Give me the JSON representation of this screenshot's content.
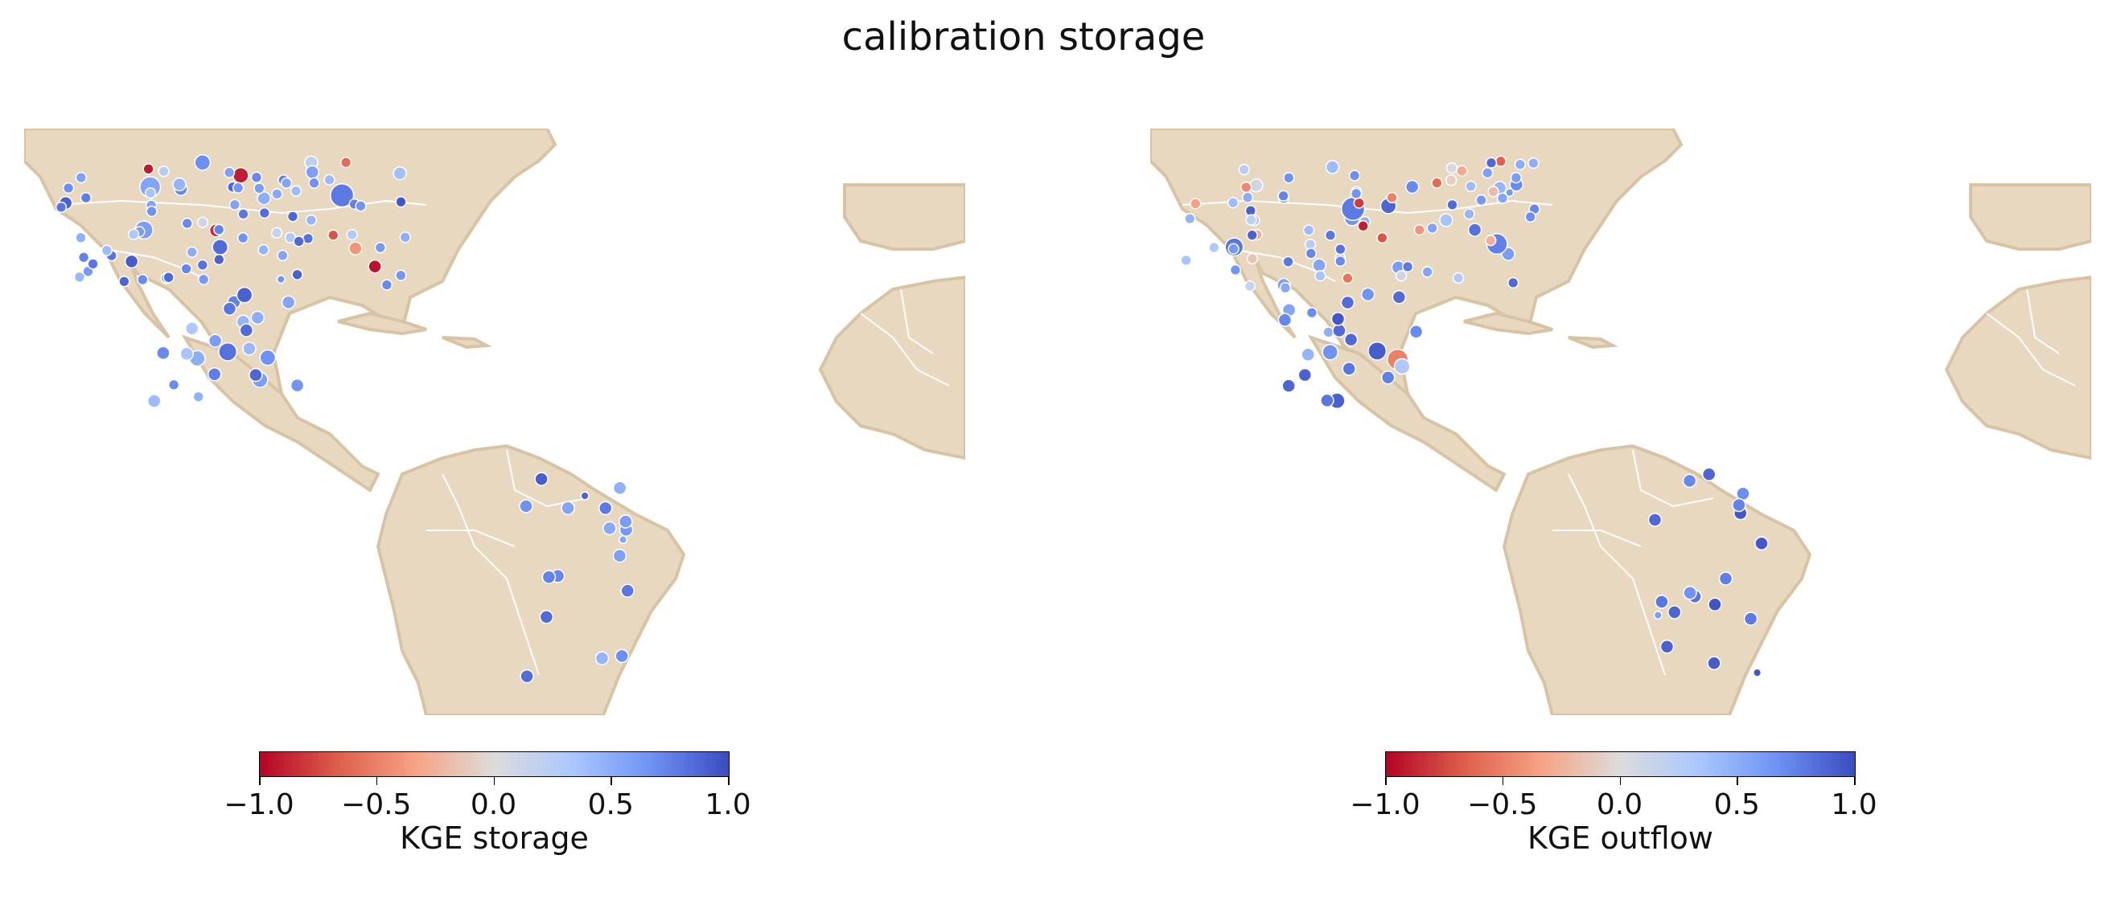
{
  "figure": {
    "title": "calibration storage"
  },
  "colors": {
    "land": "#e8d8c0",
    "coast": "#d8c4a4",
    "border": "#ffffff",
    "cmap": [
      "#b40426",
      "#dd5f4b",
      "#f6a385",
      "#dddcdc",
      "#aac7fd",
      "#6f92f3",
      "#3b4cc0"
    ]
  },
  "colorbar": {
    "ticks": [
      "−1.0",
      "−0.5",
      "0.0",
      "0.5",
      "1.0"
    ]
  },
  "panels": [
    {
      "id": "left",
      "colorbar_label": "KGE storage",
      "points": [
        [
          0.68,
          0.3,
          6
        ],
        [
          0.72,
          0.45,
          5
        ],
        [
          0.55,
          0.55,
          8
        ],
        [
          0.2,
          0.6,
          5
        ],
        [
          0.9,
          0.5,
          5
        ],
        [
          0.4,
          0.7,
          4
        ],
        [
          0.85,
          0.75,
          6
        ],
        [
          0.6,
          0.8,
          7
        ],
        [
          0.1,
          0.4,
          4
        ],
        [
          0.95,
          0.65,
          4
        ],
        [
          0.45,
          0.2,
          5
        ],
        [
          0.78,
          0.85,
          9
        ],
        [
          0.5,
          0.35,
          5
        ],
        [
          0.3,
          0.9,
          4
        ],
        [
          0.88,
          0.6,
          4
        ],
        [
          0.65,
          0.45,
          3
        ],
        [
          -0.9,
          0.7,
          6
        ],
        [
          -0.95,
          0.9,
          5
        ],
        [
          -0.85,
          0.8,
          5
        ],
        [
          -0.92,
          0.6,
          4
        ],
        [
          0.35,
          0.25,
          4
        ],
        [
          0.7,
          0.55,
          4
        ],
        [
          0.92,
          0.35,
          5
        ],
        [
          0.15,
          0.95,
          4
        ],
        [
          0.58,
          0.75,
          5
        ],
        [
          0.82,
          0.4,
          4
        ],
        [
          0.25,
          0.6,
          4
        ],
        [
          -0.4,
          0.7,
          5
        ],
        [
          0.62,
          0.3,
          4
        ],
        [
          0.75,
          0.65,
          4
        ],
        [
          0.48,
          0.5,
          4
        ],
        [
          0.9,
          0.3,
          4
        ],
        [
          0.38,
          0.55,
          5
        ],
        [
          0.66,
          0.7,
          4
        ],
        [
          -0.6,
          0.55,
          4
        ],
        [
          0.52,
          0.45,
          4
        ],
        [
          0.8,
          0.65,
          4
        ],
        [
          0.28,
          0.3,
          4
        ],
        [
          0.7,
          0.35,
          4
        ],
        [
          0.86,
          0.5,
          4
        ],
        [
          0.42,
          0.6,
          4
        ],
        [
          0.6,
          0.5,
          4
        ],
        [
          0.55,
          0.4,
          4
        ],
        [
          0.75,
          0.45,
          4
        ],
        [
          0.65,
          0.55,
          4
        ],
        [
          0.5,
          0.4,
          4
        ],
        [
          0.85,
          0.35,
          4
        ],
        [
          0.4,
          0.5,
          4
        ],
        [
          0.3,
          0.4,
          4
        ],
        [
          0.72,
          0.6,
          4
        ],
        [
          0.62,
          0.45,
          4
        ],
        [
          0.58,
          0.35,
          4
        ],
        [
          -0.7,
          0.6,
          4
        ],
        [
          0.8,
          0.4,
          4
        ],
        [
          0.66,
          0.4,
          4
        ],
        [
          0.74,
          0.5,
          4
        ],
        [
          0.56,
          0.6,
          4
        ],
        [
          0.88,
          0.45,
          4
        ],
        [
          0.46,
          0.35,
          4
        ],
        [
          0.64,
          0.5,
          4
        ],
        [
          0.7,
          0.4,
          4
        ],
        [
          0.54,
          0.45,
          4
        ],
        [
          0.76,
          0.55,
          4
        ],
        [
          0.84,
          0.3,
          4
        ],
        [
          0.6,
          0.35,
          4
        ],
        [
          0.52,
          0.55,
          4
        ],
        [
          0.68,
          0.45,
          4
        ],
        [
          0.44,
          0.4,
          4
        ],
        [
          0.78,
          0.5,
          4
        ],
        [
          0.62,
          0.4,
          4
        ],
        [
          0.82,
          0.35,
          4
        ],
        [
          0.58,
          0.45,
          4
        ],
        [
          0.72,
          0.4,
          4
        ],
        [
          0.5,
          0.5,
          4
        ],
        [
          0.66,
          0.35,
          4
        ],
        [
          0.86,
          0.4,
          4
        ],
        [
          0.4,
          0.35,
          4
        ],
        [
          0.74,
          0.35,
          4
        ],
        [
          0.56,
          0.4,
          4
        ],
        [
          0.8,
          0.45,
          4
        ],
        [
          0.64,
          0.45,
          4
        ],
        [
          0.9,
          0.4,
          4
        ],
        [
          0.48,
          0.3,
          4
        ],
        [
          0.7,
          0.3,
          4
        ],
        [
          0.82,
          0.6,
          7
        ],
        [
          0.6,
          0.85,
          6
        ],
        [
          0.5,
          0.7,
          6
        ],
        [
          0.4,
          0.8,
          5
        ],
        [
          0.88,
          0.7,
          5
        ],
        [
          0.66,
          0.75,
          6
        ],
        [
          0.3,
          0.65,
          5
        ],
        [
          0.75,
          0.8,
          5
        ],
        [
          0.55,
          0.9,
          5
        ],
        [
          0.9,
          0.85,
          6
        ],
        [
          0.45,
          0.75,
          5
        ],
        [
          0.7,
          0.7,
          5
        ],
        [
          0.6,
          0.65,
          5
        ],
        [
          0.35,
          0.85,
          5
        ],
        [
          0.8,
          0.9,
          5
        ],
        [
          0.65,
          0.6,
          5
        ],
        [
          0.5,
          0.8,
          5
        ],
        [
          0.85,
          0.65,
          5
        ],
        [
          0.42,
          0.72,
          5
        ],
        [
          0.76,
          0.76,
          5
        ],
        [
          0.58,
          0.68,
          5
        ],
        [
          0.68,
          0.82,
          5
        ],
        [
          0.52,
          0.62,
          5
        ],
        [
          0.86,
          0.78,
          5
        ],
        [
          0.78,
          0.7,
          5
        ],
        [
          0.62,
          0.72,
          5
        ],
        [
          0.72,
          0.78,
          5
        ],
        [
          0.46,
          0.66,
          5
        ],
        [
          0.92,
          0.72,
          5
        ],
        [
          0.56,
          0.76,
          5
        ],
        [
          0.66,
          0.66,
          5
        ],
        [
          0.84,
          0.82,
          5
        ],
        [
          0.48,
          0.86,
          5
        ],
        [
          0.74,
          0.68,
          5
        ],
        [
          0.6,
          0.78,
          5
        ],
        [
          0.8,
          0.74,
          5
        ],
        [
          0.9,
          0.45,
          3
        ],
        [
          0.55,
          0.35,
          3
        ]
      ]
    },
    {
      "id": "right",
      "colorbar_label": "KGE outflow",
      "points": [
        [
          0.55,
          0.3,
          4
        ],
        [
          0.6,
          0.45,
          5
        ],
        [
          0.75,
          0.55,
          8
        ],
        [
          0.4,
          0.6,
          5
        ],
        [
          0.7,
          0.5,
          5
        ],
        [
          0.85,
          0.7,
          4
        ],
        [
          0.65,
          0.75,
          6
        ],
        [
          0.8,
          0.8,
          7
        ],
        [
          0.5,
          0.4,
          4
        ],
        [
          0.9,
          0.65,
          4
        ],
        [
          0.35,
          0.2,
          5
        ],
        [
          0.78,
          0.85,
          9
        ],
        [
          0.45,
          0.35,
          5
        ],
        [
          0.3,
          0.9,
          4
        ],
        [
          0.72,
          0.6,
          4
        ],
        [
          0.62,
          0.45,
          3
        ],
        [
          0.88,
          0.7,
          6
        ],
        [
          0.55,
          0.9,
          5
        ],
        [
          0.6,
          0.8,
          5
        ],
        [
          0.68,
          0.6,
          4
        ],
        [
          0.5,
          0.25,
          4
        ],
        [
          0.75,
          0.55,
          4
        ],
        [
          0.82,
          0.35,
          5
        ],
        [
          0.4,
          0.95,
          4
        ],
        [
          0.58,
          0.75,
          5
        ],
        [
          0.86,
          0.4,
          4
        ],
        [
          0.25,
          0.6,
          4
        ],
        [
          0.7,
          0.7,
          5
        ],
        [
          0.62,
          0.3,
          4
        ],
        [
          0.8,
          0.65,
          4
        ],
        [
          -0.5,
          0.5,
          4
        ],
        [
          -0.3,
          0.3,
          4
        ],
        [
          0.1,
          0.55,
          5
        ],
        [
          -0.7,
          0.7,
          4
        ],
        [
          0.3,
          0.55,
          4
        ],
        [
          -0.2,
          0.45,
          4
        ],
        [
          0.2,
          0.65,
          4
        ],
        [
          -0.6,
          0.3,
          4
        ],
        [
          0.05,
          0.35,
          4
        ],
        [
          0.4,
          0.5,
          4
        ],
        [
          -0.4,
          0.6,
          4
        ],
        [
          0.15,
          0.5,
          4
        ],
        [
          -0.1,
          0.4,
          4
        ],
        [
          0.35,
          0.45,
          4
        ],
        [
          -0.8,
          0.55,
          4
        ],
        [
          0.25,
          0.4,
          4
        ],
        [
          -0.3,
          0.35,
          4
        ],
        [
          0.45,
          0.5,
          4
        ],
        [
          0.5,
          0.4,
          4
        ],
        [
          -0.55,
          0.6,
          4
        ],
        [
          0.3,
          0.45,
          4
        ],
        [
          -0.25,
          0.35,
          4
        ],
        [
          0.6,
          0.6,
          4
        ],
        [
          -0.35,
          0.4,
          4
        ],
        [
          0.2,
          0.4,
          4
        ],
        [
          0.1,
          0.5,
          4
        ],
        [
          -0.15,
          0.6,
          4
        ],
        [
          0.35,
          0.45,
          4
        ],
        [
          -0.45,
          0.35,
          4
        ],
        [
          0.55,
          0.5,
          4
        ],
        [
          -0.65,
          0.4,
          4
        ],
        [
          -0.9,
          0.45,
          4
        ],
        [
          0.65,
          0.55,
          4
        ],
        [
          0.7,
          0.3,
          4
        ],
        [
          0.6,
          0.35,
          4
        ],
        [
          0.52,
          0.55,
          4
        ],
        [
          0.68,
          0.45,
          4
        ],
        [
          0.44,
          0.4,
          4
        ],
        [
          0.78,
          0.5,
          4
        ],
        [
          0.62,
          0.4,
          4
        ],
        [
          0.82,
          0.35,
          4
        ],
        [
          0.58,
          0.45,
          4
        ],
        [
          0.72,
          0.4,
          4
        ],
        [
          0.5,
          0.5,
          4
        ],
        [
          0.66,
          0.35,
          4
        ],
        [
          0.86,
          0.4,
          4
        ],
        [
          0.4,
          0.35,
          4
        ],
        [
          0.74,
          0.35,
          4
        ],
        [
          0.56,
          0.4,
          4
        ],
        [
          0.8,
          0.45,
          4
        ],
        [
          0.64,
          0.45,
          4
        ],
        [
          0.9,
          0.4,
          4
        ],
        [
          0.48,
          0.3,
          4
        ],
        [
          0.7,
          0.3,
          4
        ],
        [
          0.92,
          0.6,
          7
        ],
        [
          -0.5,
          0.85,
          8
        ],
        [
          0.3,
          0.7,
          6
        ],
        [
          0.8,
          0.8,
          5
        ],
        [
          0.88,
          0.7,
          5
        ],
        [
          0.66,
          0.75,
          6
        ],
        [
          0.7,
          0.65,
          5
        ],
        [
          0.85,
          0.8,
          5
        ],
        [
          0.55,
          0.9,
          5
        ],
        [
          0.9,
          0.85,
          6
        ],
        [
          0.45,
          0.75,
          5
        ],
        [
          0.8,
          0.7,
          5
        ],
        [
          0.9,
          0.65,
          5
        ],
        [
          0.75,
          0.85,
          5
        ],
        [
          0.85,
          0.9,
          5
        ],
        [
          0.65,
          0.6,
          5
        ],
        [
          0.95,
          0.8,
          5
        ],
        [
          0.85,
          0.65,
          5
        ],
        [
          0.72,
          0.72,
          5
        ],
        [
          0.86,
          0.76,
          5
        ],
        [
          0.68,
          0.68,
          5
        ],
        [
          0.78,
          0.82,
          5
        ],
        [
          0.82,
          0.62,
          5
        ],
        [
          0.96,
          0.78,
          5
        ],
        [
          0.88,
          0.7,
          5
        ],
        [
          0.72,
          0.72,
          5
        ],
        [
          0.92,
          0.78,
          5
        ],
        [
          0.76,
          0.66,
          5
        ],
        [
          0.95,
          0.72,
          5
        ],
        [
          0.86,
          0.76,
          5
        ],
        [
          0.66,
          0.66,
          5
        ],
        [
          0.94,
          0.82,
          5
        ],
        [
          0.88,
          0.86,
          5
        ],
        [
          0.74,
          0.68,
          5
        ],
        [
          0.9,
          0.78,
          5
        ],
        [
          0.8,
          0.74,
          5
        ],
        [
          0.6,
          0.45,
          3
        ],
        [
          0.95,
          0.35,
          3
        ]
      ]
    }
  ]
}
